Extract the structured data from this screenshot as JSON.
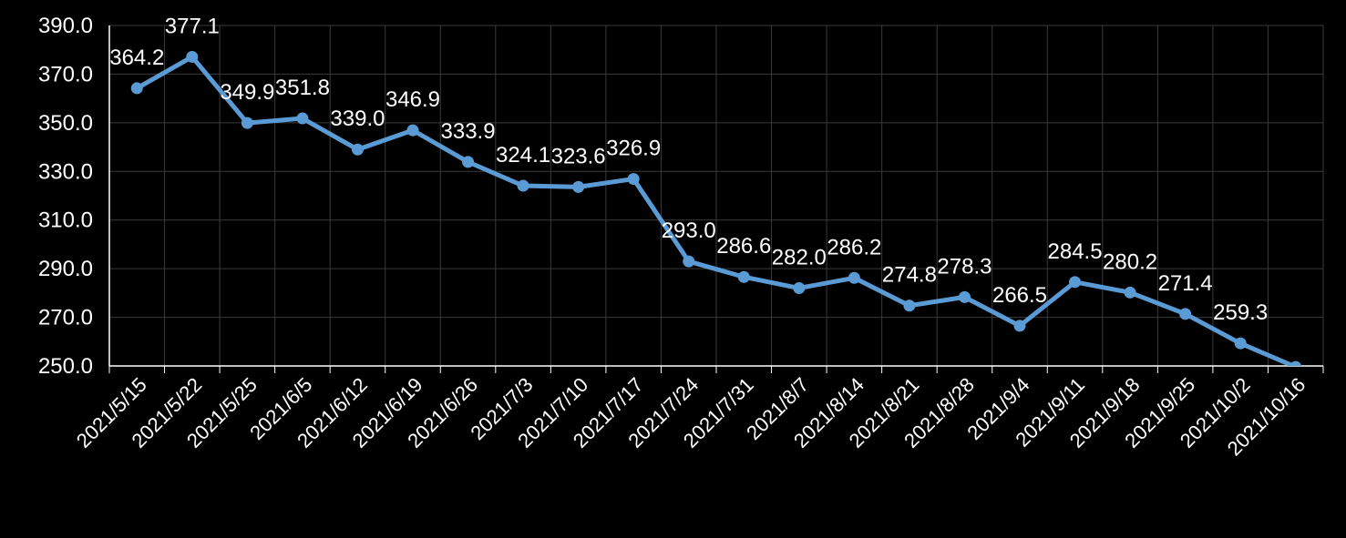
{
  "chart_data": {
    "type": "line",
    "categories": [
      "2021/5/15",
      "2021/5/22",
      "2021/5/25",
      "2021/6/5",
      "2021/6/12",
      "2021/6/19",
      "2021/6/26",
      "2021/7/3",
      "2021/7/10",
      "2021/7/17",
      "2021/7/24",
      "2021/7/31",
      "2021/8/7",
      "2021/8/14",
      "2021/8/21",
      "2021/8/28",
      "2021/9/4",
      "2021/9/11",
      "2021/9/18",
      "2021/9/25",
      "2021/10/2",
      "2021/10/16"
    ],
    "values": [
      364.2,
      377.1,
      349.9,
      351.8,
      339.0,
      346.9,
      333.9,
      324.1,
      323.6,
      326.9,
      293.0,
      286.6,
      282.0,
      286.2,
      274.8,
      278.3,
      266.5,
      284.5,
      280.2,
      271.4,
      259.3,
      249.6
    ],
    "value_labels": [
      "364.2",
      "377.1",
      "349.9",
      "351.8",
      "339.0",
      "346.9",
      "333.9",
      "324.1",
      "323.6",
      "326.9",
      "293.0",
      "286.6",
      "282.0",
      "286.2",
      "274.8",
      "278.3",
      "266.5",
      "284.5",
      "280.2",
      "271.4",
      "259.3",
      null
    ],
    "color": "#5b9bd5",
    "ylim": [
      250,
      390
    ],
    "yticks": [
      {
        "value": 250,
        "label": "250.0"
      },
      {
        "value": 270,
        "label": "270.0"
      },
      {
        "value": 290,
        "label": "290.0"
      },
      {
        "value": 310,
        "label": "310.0"
      },
      {
        "value": 330,
        "label": "330.0"
      },
      {
        "value": 350,
        "label": "350.0"
      },
      {
        "value": 370,
        "label": "370.0"
      },
      {
        "value": 390,
        "label": "390.0"
      }
    ],
    "grid": true
  }
}
